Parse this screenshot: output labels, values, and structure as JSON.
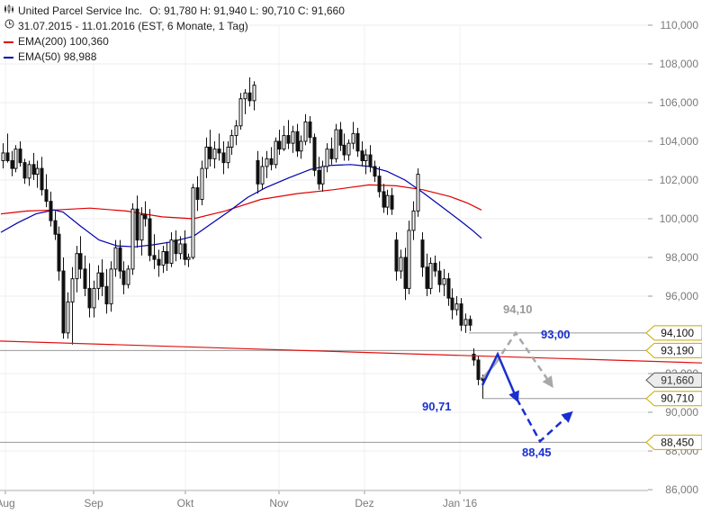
{
  "header": {
    "title": "United Parcel Service Inc.",
    "ohlc": "O: 91,780  H: 91,940  L: 90,710  C: 91,660",
    "period": "31.07.2015 - 11.01.2016 (EST, 6 Monate, 1 Tag)"
  },
  "legend": [
    {
      "label": "EMA(200)",
      "value": "100,360",
      "color": "#e00000"
    },
    {
      "label": "EMA(50)",
      "value": "98,988",
      "color": "#0000b0"
    }
  ],
  "icons": {
    "chart": "candlestick-chart-icon",
    "clock": "clock-icon"
  },
  "chart_data": {
    "type": "candlestick",
    "x_ticks": [
      "Aug",
      "Sep",
      "Okt",
      "Nov",
      "Dez",
      "Jan '16"
    ],
    "y_ticks": [
      "110,000",
      "108,000",
      "106,000",
      "104,000",
      "102,000",
      "100,000",
      "98,000",
      "96,000",
      "94,100",
      "93,190",
      "92,000",
      "91,660",
      "90,710",
      "90,000",
      "88,450",
      "88,000",
      "86,000"
    ],
    "ylim": [
      85.8,
      111.2
    ],
    "price_levels": [
      {
        "label": "94,100",
        "value": 94.1
      },
      {
        "label": "93,190",
        "value": 93.19
      },
      {
        "label": "91,660",
        "value": 91.66,
        "current": true
      },
      {
        "label": "90,710",
        "value": 90.71
      },
      {
        "label": "88,450",
        "value": 88.45
      }
    ],
    "annotations": [
      {
        "label": "94,10",
        "color": "#999999"
      },
      {
        "label": "93,00",
        "color": "#1a2fd0"
      },
      {
        "label": "90,71",
        "color": "#1a2fd0"
      },
      {
        "label": "88,45",
        "color": "#1a2fd0"
      }
    ],
    "candles": [
      [
        103.0,
        103.9,
        102.6,
        103.4
      ],
      [
        103.4,
        104.4,
        102.9,
        103.0
      ],
      [
        103.0,
        103.5,
        102.2,
        102.6
      ],
      [
        102.6,
        103.8,
        102.4,
        103.6
      ],
      [
        103.6,
        104.0,
        102.7,
        102.9
      ],
      [
        102.9,
        103.1,
        101.8,
        102.1
      ],
      [
        102.1,
        103.0,
        101.7,
        102.8
      ],
      [
        102.8,
        103.4,
        102.0,
        102.3
      ],
      [
        102.3,
        103.0,
        101.6,
        102.6
      ],
      [
        102.6,
        103.2,
        101.2,
        101.5
      ],
      [
        101.5,
        102.3,
        100.6,
        100.9
      ],
      [
        100.9,
        101.4,
        99.6,
        99.9
      ],
      [
        99.9,
        100.4,
        98.9,
        99.2
      ],
      [
        99.2,
        99.6,
        96.8,
        97.3
      ],
      [
        97.3,
        98.0,
        93.8,
        94.1
      ],
      [
        94.1,
        96.2,
        93.8,
        95.7
      ],
      [
        95.7,
        97.5,
        93.5,
        96.9
      ],
      [
        96.9,
        98.6,
        96.2,
        98.2
      ],
      [
        98.2,
        99.1,
        96.9,
        97.4
      ],
      [
        97.4,
        98.1,
        96.0,
        96.4
      ],
      [
        96.4,
        97.7,
        94.9,
        95.4
      ],
      [
        95.4,
        96.8,
        94.9,
        96.4
      ],
      [
        96.4,
        97.6,
        95.8,
        97.2
      ],
      [
        97.2,
        97.9,
        96.0,
        96.5
      ],
      [
        96.5,
        97.4,
        95.1,
        95.6
      ],
      [
        95.6,
        97.8,
        95.2,
        97.4
      ],
      [
        97.4,
        98.9,
        97.0,
        98.5
      ],
      [
        98.5,
        98.9,
        96.9,
        97.3
      ],
      [
        97.3,
        97.8,
        96.1,
        96.6
      ],
      [
        96.6,
        97.6,
        96.4,
        97.4
      ],
      [
        97.4,
        100.8,
        97.1,
        100.5
      ],
      [
        100.5,
        101.2,
        98.5,
        98.9
      ],
      [
        98.9,
        100.6,
        98.1,
        100.2
      ],
      [
        100.2,
        100.9,
        99.6,
        100.0
      ],
      [
        100.0,
        100.5,
        97.8,
        98.1
      ],
      [
        98.1,
        99.2,
        97.4,
        97.9
      ],
      [
        97.9,
        98.4,
        97.0,
        97.6
      ],
      [
        97.6,
        98.6,
        97.2,
        98.3
      ],
      [
        98.3,
        98.8,
        97.3,
        97.7
      ],
      [
        97.7,
        99.3,
        97.5,
        98.9
      ],
      [
        98.9,
        99.4,
        97.8,
        98.2
      ],
      [
        98.2,
        99.1,
        97.9,
        98.7
      ],
      [
        98.7,
        99.4,
        97.6,
        97.9
      ],
      [
        97.9,
        98.2,
        97.5,
        98.0
      ],
      [
        98.0,
        101.8,
        97.9,
        101.6
      ],
      [
        101.6,
        102.2,
        100.4,
        101.0
      ],
      [
        101.0,
        103.0,
        100.7,
        102.6
      ],
      [
        102.6,
        104.2,
        102.1,
        103.7
      ],
      [
        103.7,
        104.6,
        102.7,
        103.1
      ],
      [
        103.1,
        104.0,
        102.6,
        103.6
      ],
      [
        103.6,
        104.4,
        103.0,
        103.4
      ],
      [
        103.4,
        104.0,
        102.3,
        102.9
      ],
      [
        102.9,
        104.0,
        102.6,
        103.7
      ],
      [
        103.7,
        104.6,
        103.3,
        104.3
      ],
      [
        104.3,
        105.1,
        103.8,
        104.8
      ],
      [
        104.8,
        106.5,
        104.6,
        106.2
      ],
      [
        106.2,
        106.7,
        105.4,
        106.5
      ],
      [
        106.5,
        107.3,
        105.8,
        106.1
      ],
      [
        106.1,
        107.1,
        105.6,
        106.9
      ],
      [
        103.0,
        103.5,
        101.3,
        101.8
      ],
      [
        101.8,
        103.2,
        101.5,
        102.7
      ],
      [
        102.7,
        103.5,
        102.1,
        103.1
      ],
      [
        103.1,
        103.7,
        102.5,
        102.8
      ],
      [
        102.8,
        104.2,
        102.6,
        104.0
      ],
      [
        104.0,
        104.6,
        103.3,
        103.6
      ],
      [
        103.6,
        104.8,
        103.5,
        104.3
      ],
      [
        104.3,
        105.1,
        103.6,
        103.9
      ],
      [
        103.9,
        104.8,
        103.4,
        104.5
      ],
      [
        104.5,
        104.9,
        103.2,
        103.5
      ],
      [
        103.5,
        104.3,
        103.1,
        104.0
      ],
      [
        104.0,
        105.4,
        103.8,
        105.0
      ],
      [
        105.0,
        105.3,
        103.9,
        104.2
      ],
      [
        104.2,
        104.4,
        102.2,
        102.5
      ],
      [
        102.5,
        103.2,
        101.5,
        101.8
      ],
      [
        101.8,
        103.0,
        101.4,
        102.7
      ],
      [
        102.7,
        103.9,
        102.4,
        103.6
      ],
      [
        103.6,
        104.2,
        102.8,
        103.1
      ],
      [
        103.1,
        104.9,
        102.9,
        104.6
      ],
      [
        104.6,
        105.0,
        103.5,
        103.8
      ],
      [
        103.8,
        104.4,
        103.0,
        103.3
      ],
      [
        103.3,
        104.1,
        103.0,
        103.9
      ],
      [
        103.9,
        105.0,
        103.6,
        104.4
      ],
      [
        104.4,
        104.7,
        103.2,
        103.5
      ],
      [
        103.5,
        104.0,
        102.7,
        103.0
      ],
      [
        103.0,
        103.6,
        102.3,
        103.3
      ],
      [
        103.3,
        103.8,
        102.4,
        102.7
      ],
      [
        102.7,
        103.0,
        101.9,
        102.2
      ],
      [
        102.2,
        102.7,
        101.1,
        101.4
      ],
      [
        101.4,
        101.8,
        100.3,
        100.6
      ],
      [
        100.6,
        101.5,
        100.2,
        101.2
      ],
      [
        101.2,
        101.6,
        100.2,
        100.5
      ],
      [
        98.9,
        99.3,
        96.8,
        97.3
      ],
      [
        97.3,
        98.4,
        96.9,
        98.0
      ],
      [
        98.0,
        98.5,
        95.8,
        96.4
      ],
      [
        96.4,
        99.9,
        96.1,
        99.4
      ],
      [
        99.4,
        100.9,
        98.9,
        100.4
      ],
      [
        100.4,
        102.6,
        100.1,
        102.3
      ],
      [
        98.9,
        99.3,
        97.0,
        97.5
      ],
      [
        97.5,
        98.2,
        96.0,
        96.4
      ],
      [
        96.4,
        98.0,
        96.1,
        97.7
      ],
      [
        97.7,
        98.1,
        97.0,
        97.3
      ],
      [
        97.3,
        97.8,
        96.2,
        96.6
      ],
      [
        96.6,
        97.4,
        96.0,
        96.9
      ],
      [
        96.9,
        97.2,
        95.5,
        95.9
      ],
      [
        95.9,
        96.4,
        94.8,
        95.3
      ],
      [
        95.3,
        96.0,
        95.0,
        95.6
      ],
      [
        95.6,
        95.9,
        94.2,
        94.5
      ],
      [
        94.5,
        95.1,
        94.1,
        94.8
      ],
      [
        94.8,
        95.0,
        94.2,
        94.5
      ],
      [
        93.0,
        93.3,
        92.4,
        92.7
      ],
      [
        92.7,
        92.9,
        91.4,
        91.7
      ],
      [
        91.78,
        91.94,
        90.71,
        91.66
      ]
    ],
    "ema200": [
      [
        1,
        100.25
      ],
      [
        30,
        100.4
      ],
      [
        60,
        100.45
      ],
      [
        100,
        100.55
      ],
      [
        140,
        100.4
      ],
      [
        180,
        100.1
      ],
      [
        215,
        100.0
      ],
      [
        250,
        100.4
      ],
      [
        290,
        101.0
      ],
      [
        330,
        101.3
      ],
      [
        370,
        101.5
      ],
      [
        410,
        101.75
      ],
      [
        440,
        101.7
      ],
      [
        470,
        101.5
      ],
      [
        500,
        101.15
      ],
      [
        520,
        100.8
      ],
      [
        535,
        100.45
      ]
    ],
    "ema50": [
      [
        1,
        99.3
      ],
      [
        20,
        99.8
      ],
      [
        40,
        100.25
      ],
      [
        60,
        100.45
      ],
      [
        70,
        100.35
      ],
      [
        90,
        99.6
      ],
      [
        110,
        98.9
      ],
      [
        130,
        98.6
      ],
      [
        150,
        98.55
      ],
      [
        170,
        98.65
      ],
      [
        190,
        98.8
      ],
      [
        215,
        99.1
      ],
      [
        235,
        99.75
      ],
      [
        255,
        100.4
      ],
      [
        275,
        101.1
      ],
      [
        295,
        101.6
      ],
      [
        320,
        102.1
      ],
      [
        345,
        102.55
      ],
      [
        365,
        102.75
      ],
      [
        390,
        102.8
      ],
      [
        410,
        102.7
      ],
      [
        430,
        102.45
      ],
      [
        450,
        102.0
      ],
      [
        470,
        101.35
      ],
      [
        490,
        100.65
      ],
      [
        510,
        99.95
      ],
      [
        525,
        99.4
      ],
      [
        535,
        98.99
      ]
    ],
    "trendline": {
      "from": [
        0,
        93.68
      ],
      "to": [
        780,
        92.55
      ],
      "color": "#e01010"
    },
    "scenario_grey": [
      [
        536,
        91.75
      ],
      [
        551,
        92.55
      ],
      [
        573,
        94.1
      ],
      [
        612,
        91.45
      ]
    ],
    "scenario_blue": [
      [
        536,
        91.4
      ],
      [
        553,
        93.0
      ],
      [
        574,
        90.71
      ],
      [
        600,
        88.5
      ],
      [
        633,
        89.9
      ]
    ]
  }
}
